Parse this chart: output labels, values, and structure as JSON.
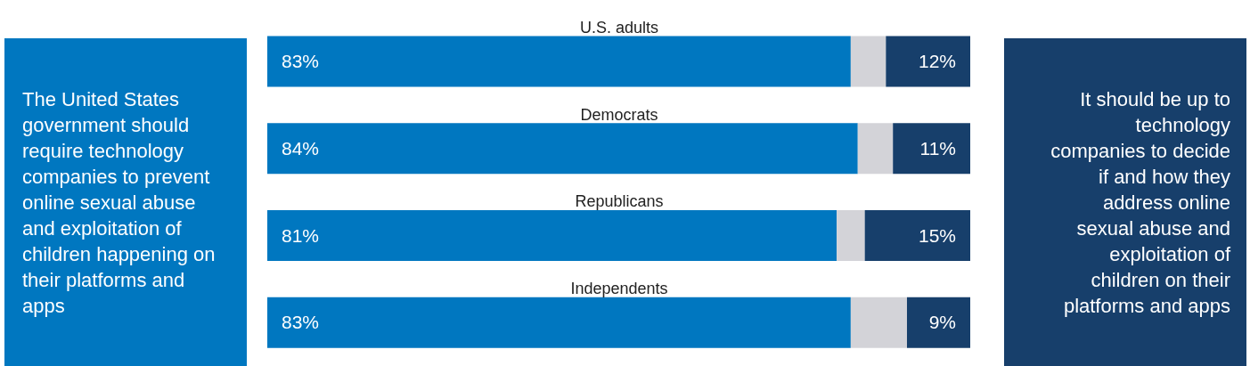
{
  "chart_data": {
    "type": "bar",
    "orientation": "horizontal",
    "stacked": true,
    "categories": [
      "U.S. adults",
      "Democrats",
      "Republicans",
      "Independents"
    ],
    "xlim": [
      0,
      100
    ],
    "series": [
      {
        "name": "The United States government should require technology companies to prevent online sexual abuse and exploitation of children happening on their platforms and apps",
        "color": "#0077c0",
        "values": [
          83,
          84,
          81,
          83
        ],
        "value_labels": [
          "83%",
          "84%",
          "81%",
          "83%"
        ]
      },
      {
        "color": "#d3d3d8",
        "values": [
          5,
          5,
          4,
          8
        ]
      },
      {
        "name": "It should be up to technology companies to decide if and how they address online sexual abuse and exploitation of children on their platforms and apps",
        "color": "#173f6b",
        "values": [
          12,
          11,
          15,
          9
        ],
        "value_labels": [
          "12%",
          "11%",
          "15%",
          "9%"
        ]
      }
    ]
  }
}
